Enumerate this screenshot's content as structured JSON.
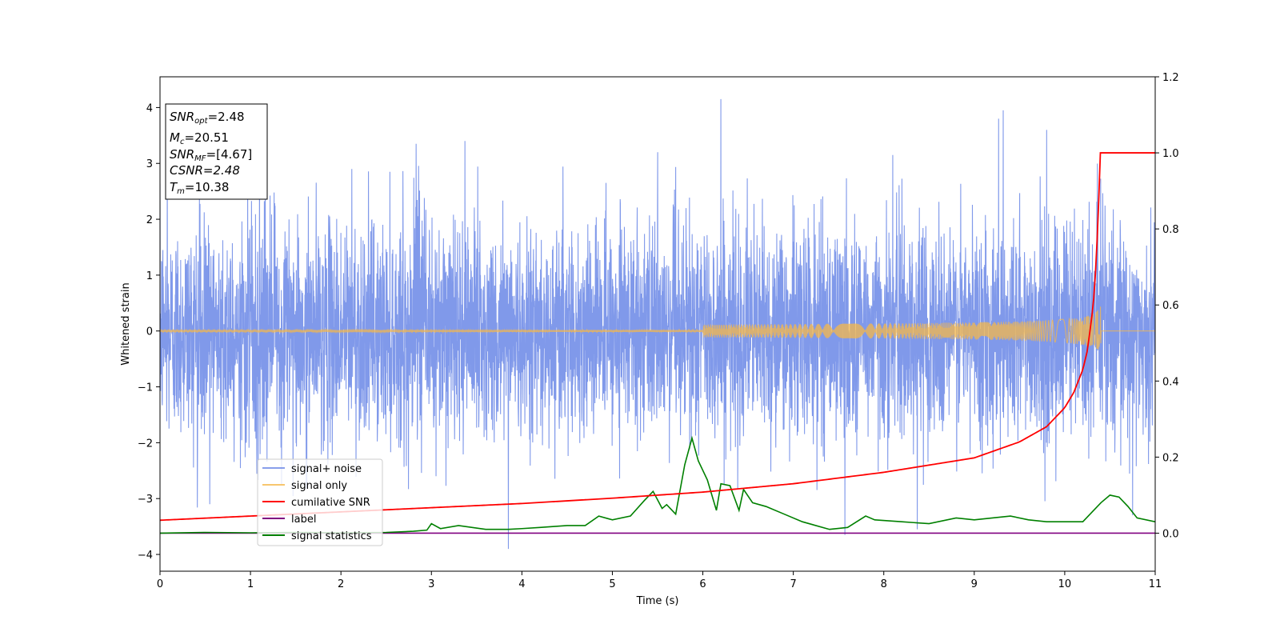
{
  "chart_data": {
    "type": "line",
    "title": "",
    "xlabel": "Time (s)",
    "ylabel": "Whitened strain",
    "xlim": [
      0,
      11
    ],
    "ylim_left": [
      -4.3,
      4.55
    ],
    "ylim_right": [
      -0.1,
      1.2
    ],
    "x_ticks": [
      "0",
      "1",
      "2",
      "3",
      "4",
      "5",
      "6",
      "7",
      "8",
      "9",
      "10",
      "11"
    ],
    "y_ticks_left": [
      "−4",
      "−3",
      "−2",
      "−1",
      "0",
      "1",
      "2",
      "3",
      "4"
    ],
    "y_ticks_right": [
      "0.0",
      "0.2",
      "0.4",
      "0.6",
      "0.8",
      "1.0",
      "1.2"
    ],
    "grid": false,
    "legend_position": "lower-left",
    "annotation": {
      "snr_opt": "=2.48",
      "mc": "=20.51",
      "snr_mf": "=[4.67]",
      "csnr": "CSNR=2.48",
      "tm": "=10.38"
    },
    "series": [
      {
        "name": "signal+ noise",
        "color": "#6a87e6",
        "axis": "left",
        "description_stats": {
          "mean": 0,
          "std": 0.95,
          "x_range": [
            0,
            11
          ]
        },
        "peaks": [
          [
            0.08,
            3.0
          ],
          [
            1.1,
            3.1
          ],
          [
            2.12,
            2.9
          ],
          [
            2.83,
            3.35
          ],
          [
            3.37,
            3.4
          ],
          [
            4.93,
            2.65
          ],
          [
            5.5,
            3.2
          ],
          [
            6.2,
            4.15
          ],
          [
            8.1,
            3.15
          ],
          [
            9.27,
            3.8
          ],
          [
            9.32,
            3.95
          ],
          [
            9.8,
            3.6
          ],
          [
            3.85,
            -3.9
          ],
          [
            0.55,
            -3.1
          ],
          [
            7.57,
            -3.65
          ],
          [
            8.37,
            -3.55
          ],
          [
            10.75,
            -3.3
          ]
        ]
      },
      {
        "name": "signal only",
        "color": "#f5b84a",
        "axis": "left",
        "chirp": {
          "start": 0,
          "merger": 10.38,
          "end": 10.4,
          "peak_amplitude": 0.45
        }
      },
      {
        "name": "cumilative SNR",
        "color": "#ff0000",
        "axis": "right",
        "x": [
          0,
          1,
          2,
          3,
          4,
          5,
          6,
          7,
          8,
          9,
          9.5,
          9.8,
          10.0,
          10.1,
          10.2,
          10.25,
          10.3,
          10.33,
          10.36,
          10.38,
          10.39,
          11
        ],
        "y": [
          0.034,
          0.045,
          0.056,
          0.067,
          0.078,
          0.092,
          0.108,
          0.13,
          0.16,
          0.198,
          0.24,
          0.28,
          0.33,
          0.37,
          0.43,
          0.48,
          0.57,
          0.64,
          0.78,
          0.9,
          1.0,
          1.0
        ]
      },
      {
        "name": "label",
        "color": "#800080",
        "axis": "right",
        "x": [
          0,
          11
        ],
        "y": [
          0,
          0
        ]
      },
      {
        "name": "signal statistics",
        "color": "#008000",
        "axis": "right",
        "x": [
          0,
          0.5,
          1.0,
          1.5,
          2.0,
          2.5,
          2.8,
          2.95,
          3.0,
          3.1,
          3.3,
          3.6,
          3.85,
          4.0,
          4.2,
          4.5,
          4.7,
          4.85,
          5.0,
          5.2,
          5.35,
          5.45,
          5.55,
          5.6,
          5.7,
          5.8,
          5.88,
          5.95,
          6.05,
          6.15,
          6.2,
          6.3,
          6.4,
          6.45,
          6.55,
          6.7,
          6.9,
          7.1,
          7.4,
          7.6,
          7.8,
          7.9,
          8.2,
          8.5,
          8.8,
          9.0,
          9.2,
          9.4,
          9.6,
          9.8,
          10.0,
          10.2,
          10.3,
          10.4,
          10.5,
          10.6,
          10.7,
          10.8,
          11.0
        ],
        "y": [
          0.0,
          0.002,
          0.001,
          0.002,
          0.001,
          0.002,
          0.005,
          0.008,
          0.025,
          0.012,
          0.02,
          0.01,
          0.01,
          0.012,
          0.015,
          0.02,
          0.02,
          0.045,
          0.035,
          0.045,
          0.085,
          0.11,
          0.065,
          0.075,
          0.05,
          0.18,
          0.25,
          0.19,
          0.14,
          0.06,
          0.13,
          0.125,
          0.06,
          0.115,
          0.08,
          0.07,
          0.05,
          0.03,
          0.01,
          0.015,
          0.045,
          0.035,
          0.03,
          0.025,
          0.04,
          0.035,
          0.04,
          0.045,
          0.035,
          0.03,
          0.03,
          0.03,
          0.055,
          0.08,
          0.1,
          0.095,
          0.07,
          0.04,
          0.03
        ]
      }
    ]
  }
}
